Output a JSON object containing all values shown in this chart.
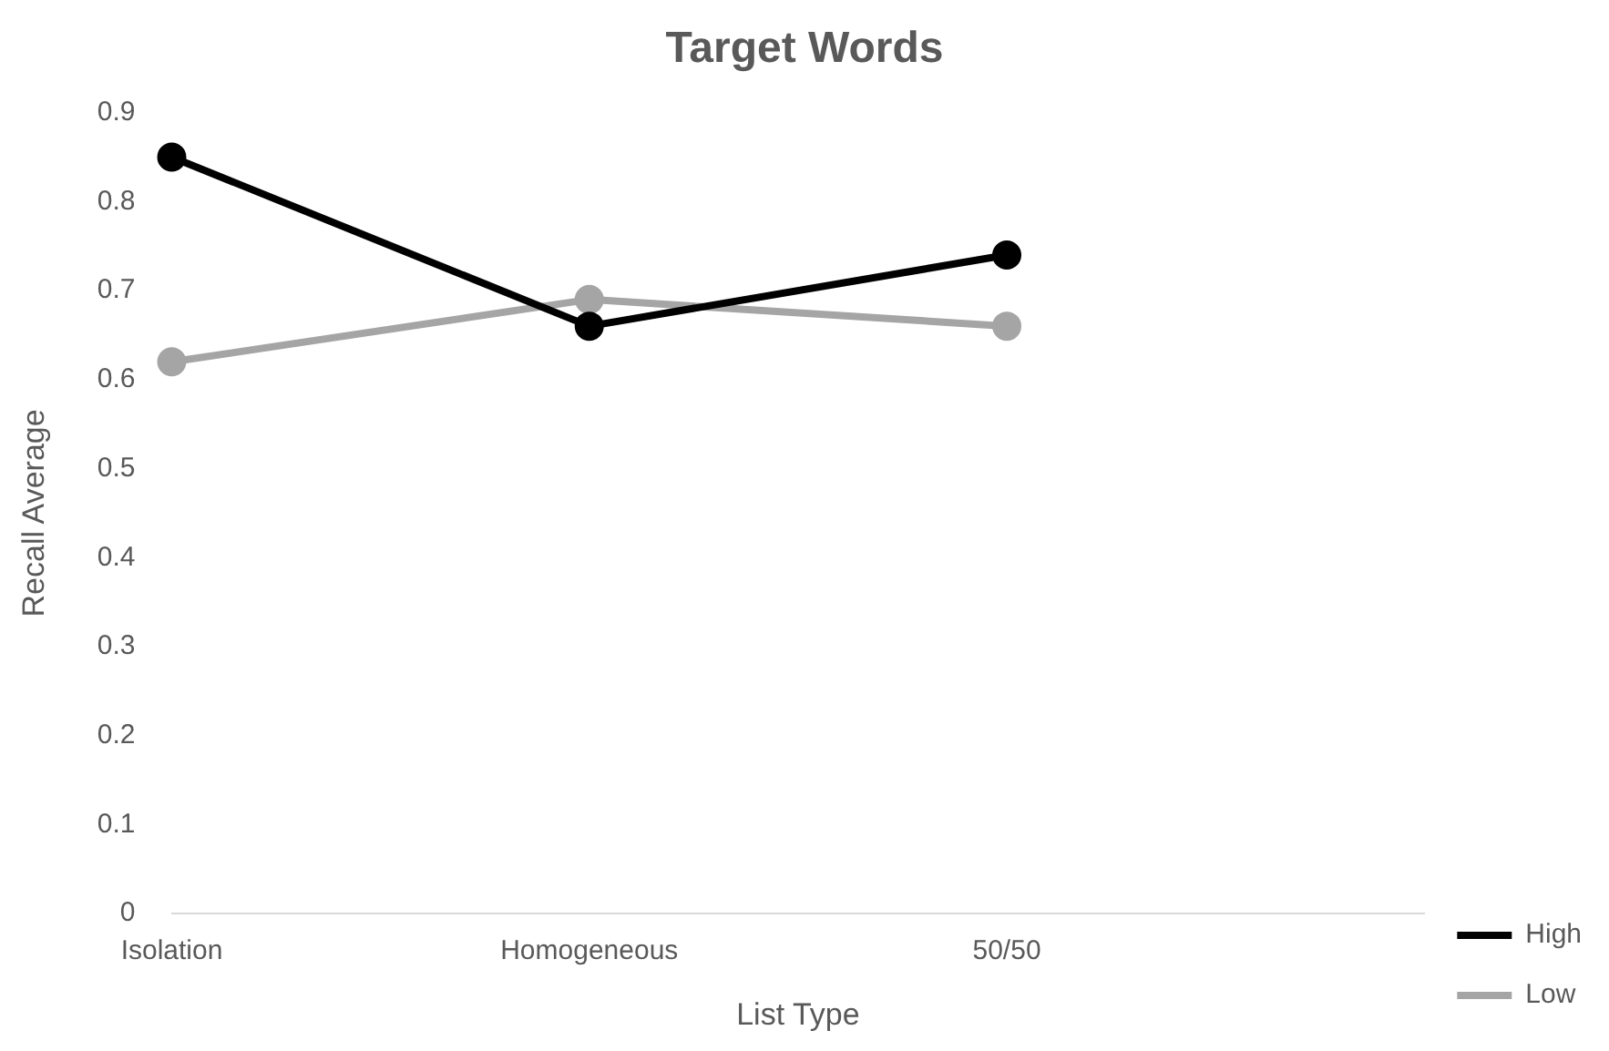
{
  "chart_data": {
    "type": "line",
    "title": "Target Words",
    "xlabel": "List Type",
    "ylabel": "Recall Average",
    "categories": [
      "Isolation",
      "Homogeneous",
      "50/50",
      null
    ],
    "series": [
      {
        "name": "High",
        "color": "#000000",
        "values": [
          0.85,
          0.66,
          0.74,
          null
        ]
      },
      {
        "name": "Low",
        "color": "#a5a5a5",
        "values": [
          0.62,
          0.69,
          0.66,
          null
        ]
      }
    ],
    "ylim": [
      0,
      0.9
    ],
    "yticks": [
      0,
      0.1,
      0.2,
      0.3,
      0.4,
      0.5,
      0.6,
      0.7,
      0.8,
      0.9
    ],
    "grid": false,
    "legend": "right",
    "marker": "circle",
    "line_style": "solid"
  }
}
